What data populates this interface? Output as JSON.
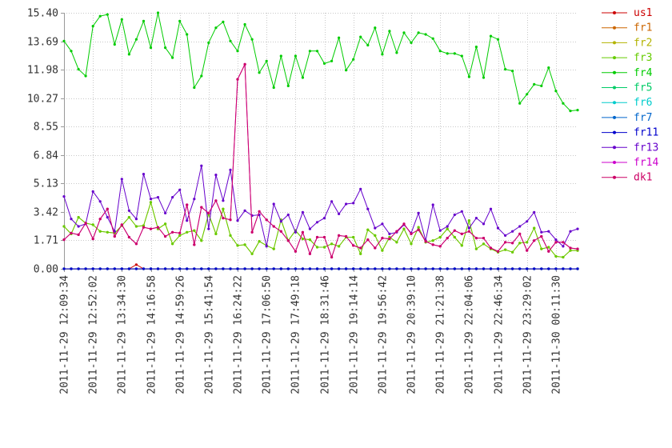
{
  "chart_data": {
    "type": "line",
    "title": "",
    "xlabel": "",
    "ylabel": "",
    "ylim": [
      0,
      15.4
    ],
    "grid": "horizontal-dashed",
    "legend_position": "right",
    "y_ticks": [
      "0.00",
      "1.71",
      "3.42",
      "5.13",
      "6.84",
      "8.55",
      "10.27",
      "11.98",
      "13.69",
      "15.40"
    ],
    "x_ticks": [
      "2011-11-29 12:09:34",
      "2011-11-29 12:52:02",
      "2011-11-29 13:34:30",
      "2011-11-29 14:16:58",
      "2011-11-29 14:59:26",
      "2011-11-29 15:41:54",
      "2011-11-29 16:24:22",
      "2011-11-29 17:06:50",
      "2011-11-29 17:49:18",
      "2011-11-29 18:31:46",
      "2011-11-29 19:14:14",
      "2011-11-29 19:56:42",
      "2011-11-29 20:39:10",
      "2011-11-29 21:21:38",
      "2011-11-29 22:04:06",
      "2011-11-29 22:46:34",
      "2011-11-29 23:29:02",
      "2011-11-30 00:11:30"
    ],
    "series": [
      {
        "name": "us1",
        "color": "#cc0000",
        "values": [
          0,
          0,
          0,
          0,
          0,
          0,
          0,
          0,
          0,
          0,
          0.25,
          0,
          0,
          0,
          0,
          0,
          0,
          0,
          0,
          0,
          0,
          0,
          0,
          0,
          0,
          0,
          0,
          0,
          0,
          0,
          0,
          0,
          0,
          0,
          0,
          0,
          0,
          0,
          0,
          0,
          0,
          0,
          0,
          0,
          0,
          0,
          0,
          0,
          0,
          0,
          0,
          0,
          0,
          0,
          0,
          0,
          0,
          0,
          0,
          0,
          0,
          0,
          0,
          0,
          0,
          0,
          0,
          0,
          0,
          0,
          0,
          0
        ]
      },
      {
        "name": "fr1",
        "color": "#cc6600",
        "values": [
          0,
          0,
          0,
          0,
          0,
          0,
          0,
          0,
          0,
          0,
          0,
          0,
          0,
          0,
          0,
          0,
          0,
          0,
          0,
          0,
          0,
          0,
          0,
          0,
          0,
          0,
          0,
          0,
          0,
          0,
          0,
          0,
          0,
          0,
          0,
          0,
          0,
          0,
          0,
          0,
          0,
          0,
          0,
          0,
          0,
          0,
          0,
          0,
          0,
          0,
          0,
          0,
          0,
          0,
          0,
          0,
          0,
          0,
          0,
          0,
          0,
          0,
          0,
          0,
          0,
          0,
          0,
          0,
          0,
          0,
          0,
          0
        ]
      },
      {
        "name": "fr2",
        "color": "#b3b300",
        "values": [
          2.55,
          2.1,
          3.1,
          2.75,
          2.65,
          2.25,
          2.2,
          2.15,
          2.6,
          3.1,
          2.55,
          2.6,
          4.0,
          2.4,
          2.7,
          1.5,
          2.0,
          2.2,
          2.3,
          1.7,
          3.3,
          2.1,
          3.6,
          2.0,
          1.4,
          1.45,
          0.9,
          1.65,
          1.4,
          1.2,
          2.95,
          1.7,
          2.3,
          1.8,
          1.75,
          1.3,
          1.3,
          1.5,
          1.35,
          1.9,
          1.9,
          0.9,
          2.35,
          2.0,
          1.1,
          1.9,
          1.6,
          2.4,
          1.5,
          2.5,
          1.6,
          1.7,
          1.9,
          2.4,
          1.9,
          1.4,
          2.9,
          1.2,
          1.5,
          1.2,
          1.0,
          1.15,
          1.0,
          1.55,
          1.6,
          2.45,
          1.2,
          1.3,
          0.75,
          0.7,
          1.1,
          1.1
        ]
      },
      {
        "name": "fr3",
        "color": "#66cc00",
        "values": [
          2.55,
          2.1,
          3.1,
          2.75,
          2.65,
          2.25,
          2.2,
          2.15,
          2.6,
          3.1,
          2.55,
          2.6,
          4.0,
          2.4,
          2.7,
          1.5,
          2.0,
          2.2,
          2.3,
          1.7,
          3.3,
          2.1,
          3.6,
          2.0,
          1.4,
          1.45,
          0.9,
          1.65,
          1.4,
          1.2,
          2.95,
          1.7,
          2.3,
          1.8,
          1.75,
          1.3,
          1.3,
          1.5,
          1.35,
          1.9,
          1.9,
          0.9,
          2.35,
          2.0,
          1.1,
          1.9,
          1.6,
          2.4,
          1.5,
          2.5,
          1.6,
          1.7,
          1.9,
          2.4,
          1.9,
          1.4,
          2.9,
          1.2,
          1.5,
          1.2,
          1.0,
          1.15,
          1.0,
          1.55,
          1.6,
          2.45,
          1.2,
          1.3,
          0.75,
          0.7,
          1.1,
          1.1
        ]
      },
      {
        "name": "fr4",
        "color": "#00cc00",
        "values": [
          13.7,
          13.1,
          12.0,
          11.6,
          14.6,
          15.2,
          15.3,
          13.5,
          15.0,
          12.9,
          13.8,
          14.9,
          13.3,
          15.4,
          13.3,
          12.7,
          14.9,
          14.1,
          10.9,
          11.6,
          13.6,
          14.5,
          14.85,
          13.7,
          13.1,
          14.7,
          13.8,
          11.8,
          12.5,
          10.9,
          12.8,
          11.0,
          12.8,
          11.5,
          13.1,
          13.1,
          12.35,
          12.5,
          13.9,
          11.95,
          12.6,
          13.95,
          13.45,
          14.5,
          12.9,
          14.3,
          13.0,
          14.2,
          13.6,
          14.2,
          14.1,
          13.85,
          13.1,
          12.95,
          12.95,
          12.8,
          11.55,
          13.35,
          11.5,
          14.0,
          13.8,
          12.0,
          11.9,
          9.95,
          10.5,
          11.1,
          11.0,
          12.1,
          10.7,
          9.95,
          9.5,
          9.55
        ]
      },
      {
        "name": "fr5",
        "color": "#00cc66",
        "values": [
          0,
          0,
          0,
          0,
          0,
          0,
          0,
          0,
          0,
          0,
          0,
          0,
          0,
          0,
          0,
          0,
          0,
          0,
          0,
          0,
          0,
          0,
          0,
          0,
          0,
          0,
          0,
          0,
          0,
          0,
          0,
          0,
          0,
          0,
          0,
          0,
          0,
          0,
          0,
          0,
          0,
          0,
          0,
          0,
          0,
          0,
          0,
          0,
          0,
          0,
          0,
          0,
          0,
          0,
          0,
          0,
          0,
          0,
          0,
          0,
          0,
          0,
          0,
          0,
          0,
          0,
          0,
          0,
          0,
          0,
          0,
          0
        ]
      },
      {
        "name": "fr6",
        "color": "#00cccc",
        "values": [
          0,
          0,
          0,
          0,
          0,
          0,
          0,
          0,
          0,
          0,
          0,
          0,
          0,
          0,
          0,
          0,
          0,
          0,
          0,
          0,
          0,
          0,
          0,
          0,
          0,
          0,
          0,
          0,
          0,
          0,
          0,
          0,
          0,
          0,
          0,
          0,
          0,
          0,
          0,
          0,
          0,
          0,
          0,
          0,
          0,
          0,
          0,
          0,
          0,
          0,
          0,
          0,
          0,
          0,
          0,
          0,
          0,
          0,
          0,
          0,
          0,
          0,
          0,
          0,
          0,
          0,
          0,
          0,
          0,
          0,
          0,
          0
        ]
      },
      {
        "name": "fr7",
        "color": "#0066cc",
        "values": [
          0,
          0,
          0,
          0,
          0,
          0,
          0,
          0,
          0,
          0,
          0,
          0,
          0,
          0,
          0,
          0,
          0,
          0,
          0,
          0,
          0,
          0,
          0,
          0,
          0,
          0,
          0,
          0,
          0,
          0,
          0,
          0,
          0,
          0,
          0,
          0,
          0,
          0,
          0,
          0,
          0,
          0,
          0,
          0,
          0,
          0,
          0,
          0,
          0,
          0,
          0,
          0,
          0,
          0,
          0,
          0,
          0,
          0,
          0,
          0,
          0,
          0,
          0,
          0,
          0,
          0,
          0,
          0,
          0,
          0,
          0,
          0
        ]
      },
      {
        "name": "fr11",
        "color": "#0000cc",
        "values": [
          0,
          0,
          0,
          0,
          0,
          0,
          0,
          0,
          0,
          0,
          0,
          0,
          0,
          0,
          0,
          0,
          0,
          0,
          0,
          0,
          0,
          0,
          0,
          0,
          0,
          0,
          0,
          0,
          0,
          0,
          0,
          0,
          0,
          0,
          0,
          0,
          0,
          0,
          0,
          0,
          0,
          0,
          0,
          0,
          0,
          0,
          0,
          0,
          0,
          0,
          0,
          0,
          0,
          0,
          0,
          0,
          0,
          0,
          0,
          0,
          0,
          0,
          0,
          0,
          0,
          0,
          0,
          0,
          0,
          0,
          0,
          0
        ]
      },
      {
        "name": "fr13",
        "color": "#6600cc",
        "values": [
          4.35,
          3.0,
          2.55,
          2.7,
          4.65,
          4.05,
          3.1,
          2.25,
          5.4,
          3.5,
          3.0,
          5.7,
          4.2,
          4.3,
          3.35,
          4.3,
          4.75,
          2.9,
          4.2,
          6.2,
          2.4,
          5.65,
          4.1,
          5.95,
          2.9,
          3.5,
          3.2,
          3.25,
          1.35,
          3.9,
          2.85,
          3.25,
          2.2,
          3.4,
          2.4,
          2.8,
          3.05,
          4.05,
          3.3,
          3.9,
          3.95,
          4.8,
          3.6,
          2.45,
          2.7,
          2.1,
          2.2,
          2.65,
          2.15,
          3.35,
          1.7,
          3.85,
          2.3,
          2.55,
          3.25,
          3.45,
          2.45,
          3.05,
          2.7,
          3.6,
          2.45,
          2.0,
          2.25,
          2.55,
          2.85,
          3.4,
          2.2,
          2.25,
          1.75,
          1.35,
          2.25,
          2.4
        ]
      },
      {
        "name": "fr14",
        "color": "#cc00cc",
        "values": [
          1.75,
          2.15,
          2.05,
          2.75,
          1.8,
          3.0,
          3.6,
          1.95,
          2.65,
          1.9,
          1.5,
          2.5,
          2.4,
          2.5,
          1.95,
          2.2,
          2.15,
          3.85,
          1.45,
          3.7,
          3.35,
          4.1,
          3.05,
          2.95,
          11.4,
          12.3,
          2.2,
          3.45,
          2.95,
          2.55,
          2.25,
          1.7,
          1.05,
          2.2,
          0.9,
          1.9,
          1.9,
          0.7,
          2.0,
          1.95,
          1.4,
          1.25,
          1.75,
          1.25,
          1.85,
          1.8,
          2.25,
          2.7,
          2.1,
          2.35,
          1.65,
          1.45,
          1.35,
          1.85,
          2.3,
          2.1,
          2.25,
          1.85,
          1.85,
          1.25,
          1.05,
          1.6,
          1.55,
          2.1,
          1.1,
          1.7,
          1.95,
          1.05,
          1.6,
          1.6,
          1.25,
          1.2
        ]
      },
      {
        "name": "dk1",
        "color": "#cc0066",
        "values": [
          1.75,
          2.15,
          2.05,
          2.75,
          1.8,
          3.0,
          3.6,
          1.95,
          2.65,
          1.9,
          1.5,
          2.5,
          2.4,
          2.5,
          1.95,
          2.2,
          2.15,
          3.85,
          1.45,
          3.7,
          3.35,
          4.1,
          3.05,
          2.95,
          11.4,
          12.3,
          2.2,
          3.45,
          2.95,
          2.55,
          2.25,
          1.7,
          1.05,
          2.2,
          0.9,
          1.9,
          1.9,
          0.7,
          2.0,
          1.95,
          1.4,
          1.25,
          1.75,
          1.25,
          1.85,
          1.8,
          2.25,
          2.7,
          2.1,
          2.35,
          1.65,
          1.45,
          1.35,
          1.85,
          2.3,
          2.1,
          2.25,
          1.85,
          1.85,
          1.25,
          1.05,
          1.6,
          1.55,
          2.1,
          1.1,
          1.7,
          1.95,
          1.05,
          1.6,
          1.6,
          1.25,
          1.2
        ]
      }
    ]
  }
}
